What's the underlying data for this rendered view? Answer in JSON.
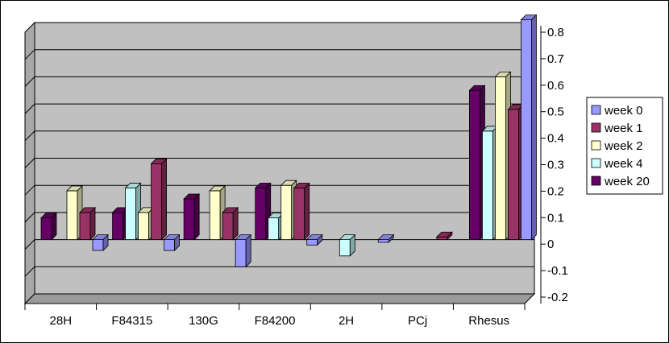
{
  "chart_data": {
    "type": "bar",
    "style": "3d-clustered-column",
    "title": "",
    "xlabel": "",
    "ylabel": "",
    "y_axis_position": "right",
    "ylim": [
      -0.2,
      0.8
    ],
    "yticks": [
      "-0.2",
      "-0.1",
      "0",
      "0.1",
      "0.2",
      "0.3",
      "0.4",
      "0.5",
      "0.6",
      "0.7",
      "0.8"
    ],
    "ytick_values": [
      -0.2,
      -0.1,
      0,
      0.1,
      0.2,
      0.3,
      0.4,
      0.5,
      0.6,
      0.7,
      0.8
    ],
    "grid": true,
    "legend_position": "right",
    "categories": [
      "28H",
      "F84315",
      "130G",
      "F84200",
      "2H",
      "PCj",
      "Rhesus"
    ],
    "series": [
      {
        "name": "week 0",
        "color": "#9999ff",
        "values": [
          -0.04,
          -0.04,
          -0.1,
          -0.02,
          -0.01,
          0.0,
          0.81
        ]
      },
      {
        "name": "week 1",
        "color": "#993366",
        "values": [
          0.1,
          0.28,
          0.1,
          0.19,
          0.0,
          0.01,
          0.48
        ]
      },
      {
        "name": "week 2",
        "color": "#ffffcc",
        "values": [
          0.18,
          0.1,
          0.18,
          0.2,
          0.0,
          0.0,
          0.6
        ]
      },
      {
        "name": "week 4",
        "color": "#ccffff",
        "values": [
          0.0,
          0.19,
          0.0,
          0.08,
          -0.06,
          0.0,
          0.4
        ]
      },
      {
        "name": "week 20",
        "color": "#660066",
        "values": [
          0.08,
          0.1,
          0.15,
          0.19,
          0.0,
          0.0,
          0.55
        ]
      }
    ],
    "draw_order": [
      "week 20",
      "week 4",
      "week 2",
      "week 1",
      "week 0"
    ],
    "colors": {
      "wall": "#c0c0c0",
      "floor": "#9a9a9a",
      "gridline": "#000000",
      "border": "#000000"
    }
  }
}
